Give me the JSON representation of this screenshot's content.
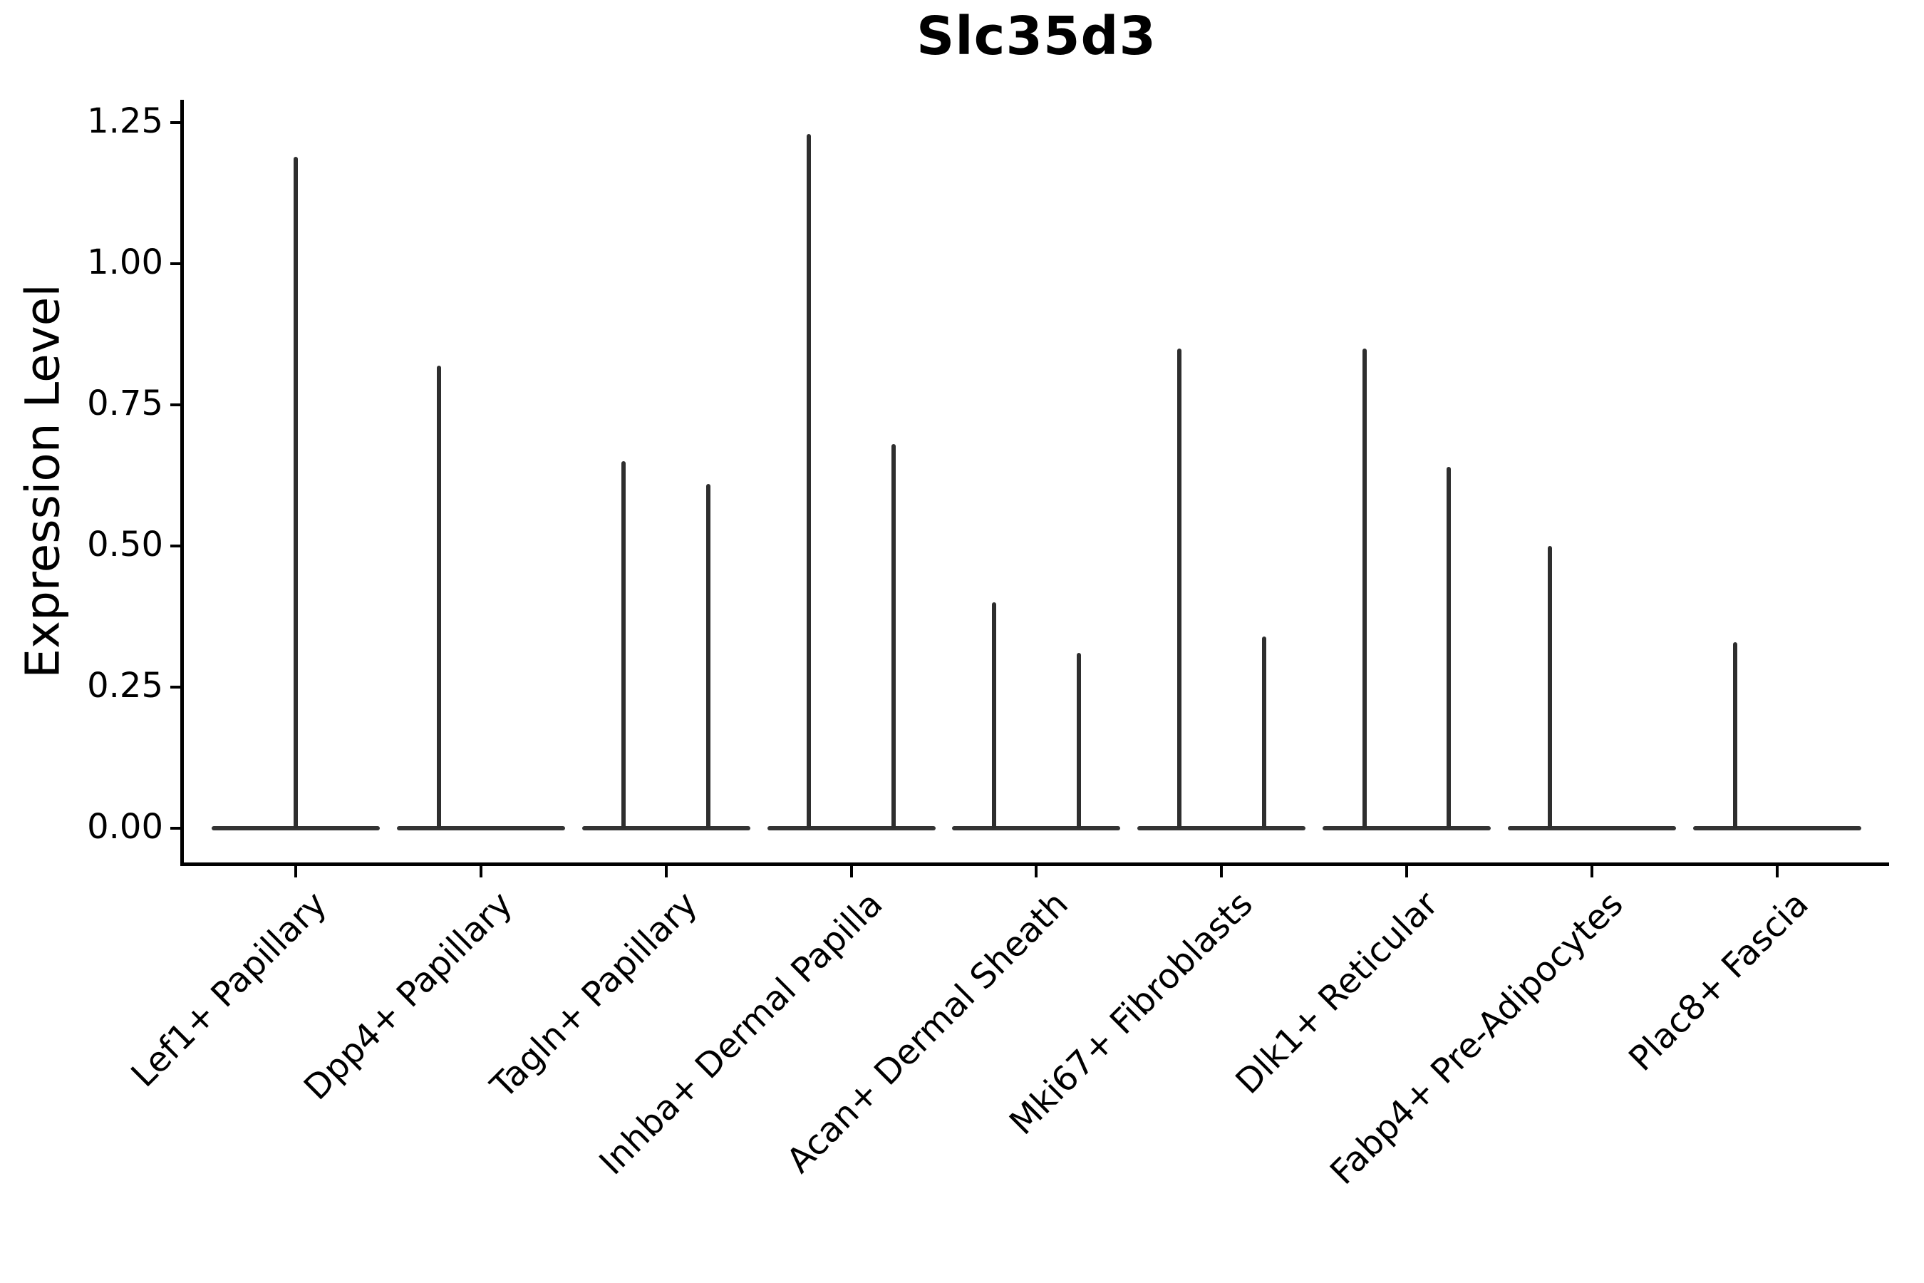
{
  "title": "Slc35d3",
  "y_axis": {
    "label": "Expression Level",
    "tick_labels": [
      "0.00",
      "0.25",
      "0.50",
      "0.75",
      "1.00",
      "1.25"
    ]
  },
  "chart_data": {
    "type": "violin",
    "title": "Slc35d3",
    "xlabel": "",
    "ylabel": "Expression Level",
    "ylim": [
      0,
      1.3
    ],
    "yticks": [
      0,
      0.25,
      0.5,
      0.75,
      1.0,
      1.25
    ],
    "grid": false,
    "legend": "none",
    "description": "Needle-shaped single-cell expression violins; bulk of cells at 0 forms a flat base bar, rare expressing cells form a thin vertical spike per violin. Violins are dodged within categories (offset is the fraction of category pitch from the category center).",
    "categories": [
      "Lef1+ Papillary",
      "Dpp4+ Papillary",
      "Tagln+ Papillary",
      "Inhba+ Dermal Papilla",
      "Acan+ Dermal Sheath",
      "Mki67+ Fibroblasts",
      "Dlk1+ Reticular",
      "Fabp4+ Pre-Adipocytes",
      "Plac8+ Fascia"
    ],
    "violins": [
      {
        "category": "Lef1+ Papillary",
        "needles": [
          {
            "offset": 0.0,
            "max_expression": 1.19
          }
        ]
      },
      {
        "category": "Dpp4+ Papillary",
        "needles": [
          {
            "offset": -0.228,
            "max_expression": 0.82
          }
        ]
      },
      {
        "category": "Tagln+ Papillary",
        "needles": [
          {
            "offset": -0.228,
            "max_expression": 0.65
          },
          {
            "offset": 0.228,
            "max_expression": 0.61
          }
        ]
      },
      {
        "category": "Inhba+ Dermal Papilla",
        "needles": [
          {
            "offset": -0.228,
            "max_expression": 1.23
          },
          {
            "offset": 0.228,
            "max_expression": 0.68
          }
        ]
      },
      {
        "category": "Acan+ Dermal Sheath",
        "needles": [
          {
            "offset": -0.228,
            "max_expression": 0.4
          },
          {
            "offset": 0.228,
            "max_expression": 0.31
          }
        ]
      },
      {
        "category": "Mki67+ Fibroblasts",
        "needles": [
          {
            "offset": -0.228,
            "max_expression": 0.85
          },
          {
            "offset": 0.228,
            "max_expression": 0.34
          }
        ]
      },
      {
        "category": "Dlk1+ Reticular",
        "needles": [
          {
            "offset": -0.228,
            "max_expression": 0.85
          },
          {
            "offset": 0.228,
            "max_expression": 0.64
          }
        ]
      },
      {
        "category": "Fabp4+ Pre-Adipocytes",
        "needles": [
          {
            "offset": -0.228,
            "max_expression": 0.5
          }
        ]
      },
      {
        "category": "Plac8+ Fascia",
        "needles": [
          {
            "offset": -0.228,
            "max_expression": 0.33
          }
        ]
      }
    ],
    "colors": {
      "violin_line": "#2e2e2e",
      "spine": "#000000",
      "text": "#000000",
      "background": "#ffffff"
    }
  }
}
